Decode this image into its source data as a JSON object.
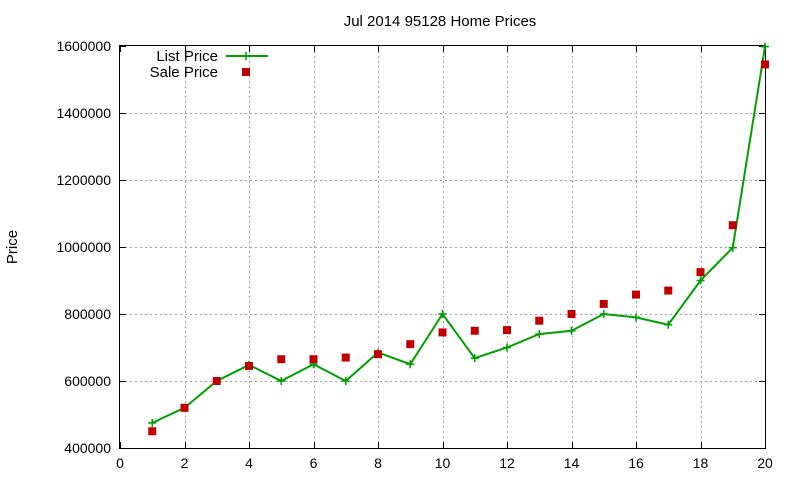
{
  "chart_data": {
    "type": "line",
    "title": "Jul 2014 95128 Home Prices",
    "xlabel": "",
    "ylabel": "Price",
    "xlim": [
      0,
      20
    ],
    "ylim": [
      400000,
      1600000
    ],
    "x_ticks": [
      0,
      2,
      4,
      6,
      8,
      10,
      12,
      14,
      16,
      18,
      20
    ],
    "y_ticks": [
      400000,
      600000,
      800000,
      1000000,
      1200000,
      1400000,
      1600000
    ],
    "grid": true,
    "legend_position": "top-left",
    "series": [
      {
        "name": "List Price",
        "style": "line-with-plus-markers",
        "color": "#00a000",
        "x": [
          1,
          2,
          3,
          4,
          5,
          6,
          7,
          8,
          9,
          10,
          11,
          12,
          13,
          14,
          15,
          16,
          17,
          18,
          19,
          20
        ],
        "values": [
          475000,
          520000,
          600000,
          648000,
          600000,
          650000,
          600000,
          685000,
          650000,
          800000,
          668000,
          700000,
          740000,
          750000,
          800000,
          790000,
          768000,
          900000,
          998000,
          1598000
        ]
      },
      {
        "name": "Sale Price",
        "style": "square-markers",
        "color": "#c00000",
        "x": [
          1,
          2,
          3,
          4,
          5,
          6,
          7,
          8,
          9,
          10,
          11,
          12,
          13,
          14,
          15,
          16,
          17,
          18,
          19,
          20
        ],
        "values": [
          450000,
          520000,
          600000,
          645000,
          665000,
          665000,
          670000,
          680000,
          710000,
          745000,
          750000,
          752000,
          780000,
          800000,
          830000,
          858000,
          870000,
          925000,
          1065000,
          1545000
        ]
      }
    ]
  }
}
